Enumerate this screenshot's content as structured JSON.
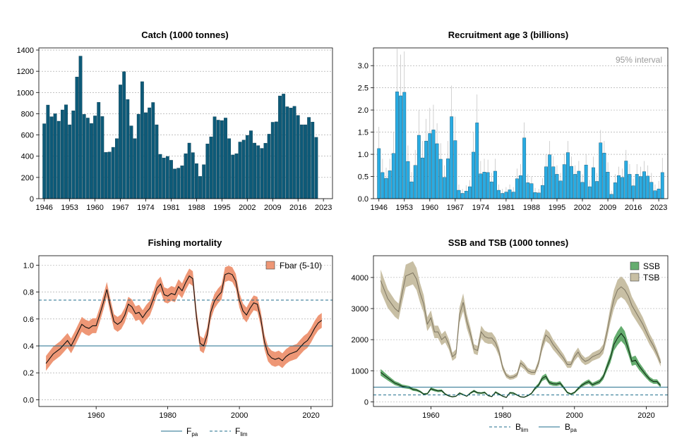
{
  "colors": {
    "catch": "#0d5a78",
    "recruit": "#29abe2",
    "f_band": "#ee9776",
    "ssb_band": "#65ad6f",
    "tsb_band": "#c8bfa4",
    "ref_line": "#1f6d8c",
    "grid": "#9e9e9e"
  },
  "chart_data": [
    {
      "type": "bar",
      "title": "Catch (1000 tonnes)",
      "x_start": 1946,
      "xlim": [
        1944.5,
        2025.5
      ],
      "ylim": [
        0,
        1420
      ],
      "yticks": [
        0,
        200,
        400,
        600,
        800,
        1000,
        1200,
        1400
      ],
      "xticks": [
        1946,
        1953,
        1960,
        1967,
        1974,
        1981,
        1988,
        1995,
        2002,
        2009,
        2016,
        2023
      ],
      "values": [
        706,
        882,
        772,
        800,
        730,
        836,
        884,
        696,
        828,
        1146,
        1343,
        794,
        760,
        708,
        780,
        908,
        774,
        436,
        440,
        484,
        566,
        1072,
        1196,
        934,
        686,
        566,
        796,
        1102,
        810,
        856,
        906,
        696,
        418,
        384,
        398,
        362,
        280,
        288,
        310,
        424,
        524,
        434,
        330,
        210,
        320,
        516,
        582,
        772,
        740,
        736,
        760,
        566,
        412,
        424,
        534,
        552,
        596,
        640,
        524,
        500,
        474,
        522,
        608,
        720,
        724,
        968,
        986,
        866,
        854,
        870,
        784,
        696,
        696,
        766,
        722,
        578
      ]
    },
    {
      "type": "bar",
      "title": "Recruitment age 3 (billions)",
      "annotation": "95% interval",
      "x_start": 1946,
      "xlim": [
        1944.5,
        2025.5
      ],
      "ylim": [
        0,
        3.4
      ],
      "yticks": [
        0.0,
        0.5,
        1.0,
        1.5,
        2.0,
        2.5,
        3.0
      ],
      "ytick_labels": [
        "0.0",
        "0.5",
        "1.0",
        "1.5",
        "2.0",
        "2.5",
        "3.0"
      ],
      "xticks": [
        1946,
        1953,
        1960,
        1967,
        1974,
        1981,
        1988,
        1995,
        2002,
        2009,
        2016,
        2023
      ],
      "values": [
        1.13,
        0.59,
        0.46,
        0.63,
        1.02,
        2.41,
        2.32,
        2.4,
        0.84,
        0.38,
        0.75,
        1.43,
        0.92,
        1.3,
        1.47,
        1.55,
        1.24,
        0.89,
        0.48,
        0.9,
        1.85,
        1.31,
        0.19,
        0.12,
        0.17,
        0.27,
        1.05,
        1.71,
        0.56,
        0.6,
        0.59,
        0.38,
        0.62,
        0.19,
        0.12,
        0.15,
        0.2,
        0.15,
        0.45,
        0.52,
        1.37,
        0.36,
        0.34,
        0.14,
        0.13,
        0.3,
        0.72,
        0.99,
        0.72,
        0.55,
        0.4,
        0.77,
        1.04,
        0.73,
        0.55,
        0.62,
        0.37,
        0.76,
        0.27,
        0.7,
        0.39,
        1.26,
        1.03,
        0.6,
        0.1,
        0.36,
        0.52,
        0.48,
        0.85,
        0.55,
        0.29,
        0.55,
        0.5,
        0.61,
        0.51,
        0.37,
        0.18,
        0.22,
        0.59
      ],
      "upper": [
        1.62,
        0.9,
        0.7,
        0.9,
        1.5,
        3.38,
        3.25,
        3.32,
        1.2,
        0.6,
        1.1,
        2.0,
        1.3,
        1.8,
        2.05,
        2.12,
        1.7,
        1.25,
        0.75,
        1.3,
        2.55,
        1.85,
        0.32,
        0.22,
        0.3,
        0.42,
        1.5,
        2.35,
        0.85,
        0.9,
        0.88,
        0.58,
        0.9,
        0.32,
        0.22,
        0.26,
        0.32,
        0.26,
        0.68,
        0.78,
        1.72,
        0.55,
        0.5,
        0.24,
        0.22,
        0.46,
        1.0,
        1.3,
        0.96,
        0.75,
        0.58,
        1.02,
        1.3,
        0.95,
        0.75,
        0.85,
        0.55,
        1.0,
        0.42,
        0.95,
        0.58,
        1.55,
        1.3,
        0.82,
        0.18,
        0.55,
        0.72,
        0.68,
        1.1,
        0.78,
        0.45,
        0.78,
        0.72,
        0.85,
        0.75,
        0.58,
        0.32,
        0.4,
        0.92
      ]
    },
    {
      "type": "line",
      "title": "Fishing mortality",
      "xlim": [
        1944,
        2026
      ],
      "ylim": [
        -0.05,
        1.07
      ],
      "yticks": [
        0.0,
        0.2,
        0.4,
        0.6,
        0.8,
        1.0
      ],
      "ytick_labels": [
        "0.0",
        "0.2",
        "0.4",
        "0.6",
        "0.8",
        "1.0"
      ],
      "xticks": [
        1960,
        1980,
        2000,
        2020
      ],
      "x": [
        1946,
        1948,
        1950,
        1952,
        1953,
        1954,
        1956,
        1957,
        1958,
        1959,
        1960,
        1961,
        1962,
        1963,
        1964,
        1965,
        1966,
        1967,
        1968,
        1969,
        1970,
        1971,
        1972,
        1973,
        1974,
        1975,
        1976,
        1977,
        1978,
        1979,
        1980,
        1981,
        1982,
        1983,
        1984,
        1985,
        1986,
        1987,
        1988,
        1989,
        1990,
        1991,
        1992,
        1993,
        1994,
        1995,
        1996,
        1997,
        1998,
        1999,
        2000,
        2001,
        2002,
        2003,
        2004,
        2005,
        2006,
        2007,
        2008,
        2009,
        2010,
        2011,
        2012,
        2013,
        2014,
        2015,
        2016,
        2017,
        2018,
        2019,
        2020,
        2021,
        2022,
        2023
      ],
      "series": [
        {
          "name": "Fbar (5-10)",
          "values": [
            0.27,
            0.34,
            0.38,
            0.44,
            0.4,
            0.45,
            0.56,
            0.54,
            0.53,
            0.55,
            0.55,
            0.63,
            0.72,
            0.82,
            0.69,
            0.58,
            0.56,
            0.58,
            0.63,
            0.71,
            0.69,
            0.64,
            0.65,
            0.61,
            0.65,
            0.68,
            0.75,
            0.83,
            0.86,
            0.78,
            0.77,
            0.79,
            0.78,
            0.84,
            0.81,
            0.87,
            0.92,
            0.9,
            0.62,
            0.42,
            0.4,
            0.48,
            0.65,
            0.73,
            0.77,
            0.8,
            0.93,
            0.94,
            0.93,
            0.88,
            0.74,
            0.66,
            0.63,
            0.68,
            0.72,
            0.71,
            0.6,
            0.43,
            0.34,
            0.31,
            0.3,
            0.31,
            0.29,
            0.32,
            0.34,
            0.35,
            0.36,
            0.39,
            0.42,
            0.44,
            0.48,
            0.53,
            0.57,
            0.59
          ]
        }
      ],
      "band_half_width": 0.055,
      "ref_lines": [
        {
          "name": "Fpa",
          "value": 0.4,
          "style": "solid"
        },
        {
          "name": "Flim",
          "value": 0.74,
          "style": "dashed"
        }
      ]
    },
    {
      "type": "area",
      "title": "SSB and TSB (1000 tonnes)",
      "xlim": [
        1944,
        2026
      ],
      "ylim": [
        -150,
        4700
      ],
      "yticks": [
        0,
        1000,
        2000,
        3000,
        4000
      ],
      "xticks": [
        1960,
        1980,
        2000,
        2020
      ],
      "x": [
        1946,
        1948,
        1950,
        1951,
        1952,
        1953,
        1954,
        1955,
        1956,
        1957,
        1958,
        1959,
        1960,
        1961,
        1962,
        1963,
        1964,
        1965,
        1966,
        1967,
        1968,
        1969,
        1970,
        1971,
        1972,
        1973,
        1974,
        1975,
        1976,
        1977,
        1978,
        1979,
        1980,
        1981,
        1982,
        1983,
        1984,
        1985,
        1986,
        1987,
        1988,
        1989,
        1990,
        1991,
        1992,
        1993,
        1994,
        1995,
        1996,
        1997,
        1998,
        1999,
        2000,
        2001,
        2002,
        2003,
        2004,
        2005,
        2006,
        2007,
        2008,
        2009,
        2010,
        2011,
        2012,
        2013,
        2014,
        2015,
        2016,
        2017,
        2018,
        2019,
        2020,
        2021,
        2022,
        2023,
        2024
      ],
      "series": [
        {
          "name": "SSB",
          "values": [
            950,
            770,
            600,
            560,
            500,
            480,
            460,
            400,
            380,
            330,
            250,
            260,
            420,
            380,
            350,
            360,
            250,
            190,
            160,
            180,
            280,
            230,
            180,
            280,
            350,
            290,
            280,
            300,
            200,
            170,
            310,
            250,
            180,
            140,
            290,
            280,
            220,
            160,
            150,
            200,
            270,
            430,
            540,
            750,
            820,
            620,
            580,
            570,
            600,
            460,
            300,
            250,
            300,
            420,
            530,
            600,
            650,
            550,
            600,
            650,
            800,
            1100,
            1400,
            1850,
            2050,
            2200,
            2050,
            1700,
            1300,
            1340,
            1150,
            1000,
            850,
            720,
            650,
            650,
            520
          ]
        },
        {
          "name": "TSB",
          "values": [
            3900,
            3320,
            3000,
            2900,
            3500,
            4050,
            4100,
            4150,
            3950,
            3500,
            3150,
            2500,
            2700,
            2250,
            2250,
            2000,
            2100,
            1850,
            1450,
            1550,
            2800,
            3200,
            2600,
            2200,
            1700,
            1650,
            2250,
            2100,
            2050,
            2050,
            1900,
            1600,
            1100,
            850,
            780,
            800,
            870,
            1250,
            1150,
            1000,
            950,
            950,
            1250,
            1800,
            2150,
            2050,
            1850,
            1700,
            1550,
            1400,
            1200,
            1200,
            1450,
            1600,
            1400,
            1300,
            1350,
            1450,
            1500,
            1550,
            1700,
            2200,
            2800,
            3300,
            3600,
            3700,
            3600,
            3400,
            3100,
            2900,
            2700,
            2500,
            2250,
            2000,
            1800,
            1550,
            1250
          ]
        }
      ],
      "ref_lines": [
        {
          "name": "Blim",
          "value": 220,
          "style": "dashed"
        },
        {
          "name": "Bpa",
          "value": 470,
          "style": "solid"
        }
      ]
    }
  ],
  "legends": {
    "f_band": "Fbar (5-10)",
    "ssb": "SSB",
    "tsb": "TSB",
    "fpa_main": "F",
    "fpa_sub": "pa",
    "flim_main": "F",
    "flim_sub": "lim",
    "blim_main": "B",
    "blim_sub": "lim",
    "bpa_main": "B",
    "bpa_sub": "pa"
  }
}
